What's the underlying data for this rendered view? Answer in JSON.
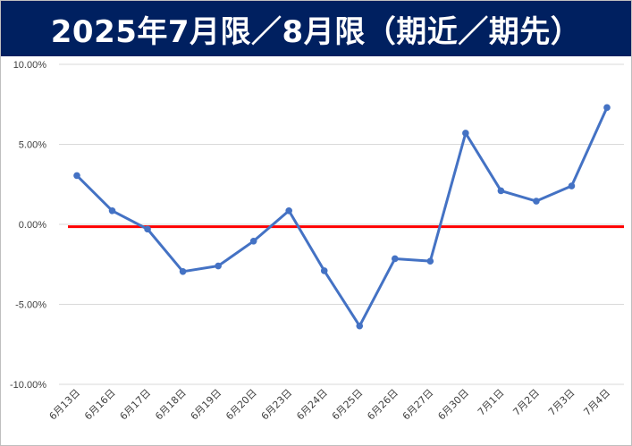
{
  "title": "2025年7月限／8月限（期近／期先）",
  "chart_data": {
    "type": "line",
    "title": "2025年7月限／8月限（期近／期先）",
    "xlabel": "",
    "ylabel": "",
    "categories": [
      "6月13日",
      "6月16日",
      "6月17日",
      "6月18日",
      "6月19日",
      "6月20日",
      "6月23日",
      "6月24日",
      "6月25日",
      "6月26日",
      "6月27日",
      "6月30日",
      "7月1日",
      "7月2日",
      "7月3日",
      "7月4日"
    ],
    "series": [
      {
        "values": [
          3.05,
          0.85,
          -0.3,
          -2.95,
          -2.6,
          -1.05,
          0.85,
          -2.9,
          -6.35,
          -2.15,
          -2.3,
          5.7,
          2.1,
          1.45,
          2.4,
          7.3
        ],
        "color": "#4472C4"
      }
    ],
    "reference_line": {
      "value": -0.15,
      "color": "#FF0000"
    },
    "ylim": [
      -10,
      10
    ],
    "yticks": [
      10,
      5,
      0,
      -5,
      -10
    ],
    "ytick_labels": [
      "10.00%",
      "5.00%",
      "0.00%",
      "-5.00%",
      "-10.00%"
    ],
    "grid": true,
    "legend": "none"
  }
}
